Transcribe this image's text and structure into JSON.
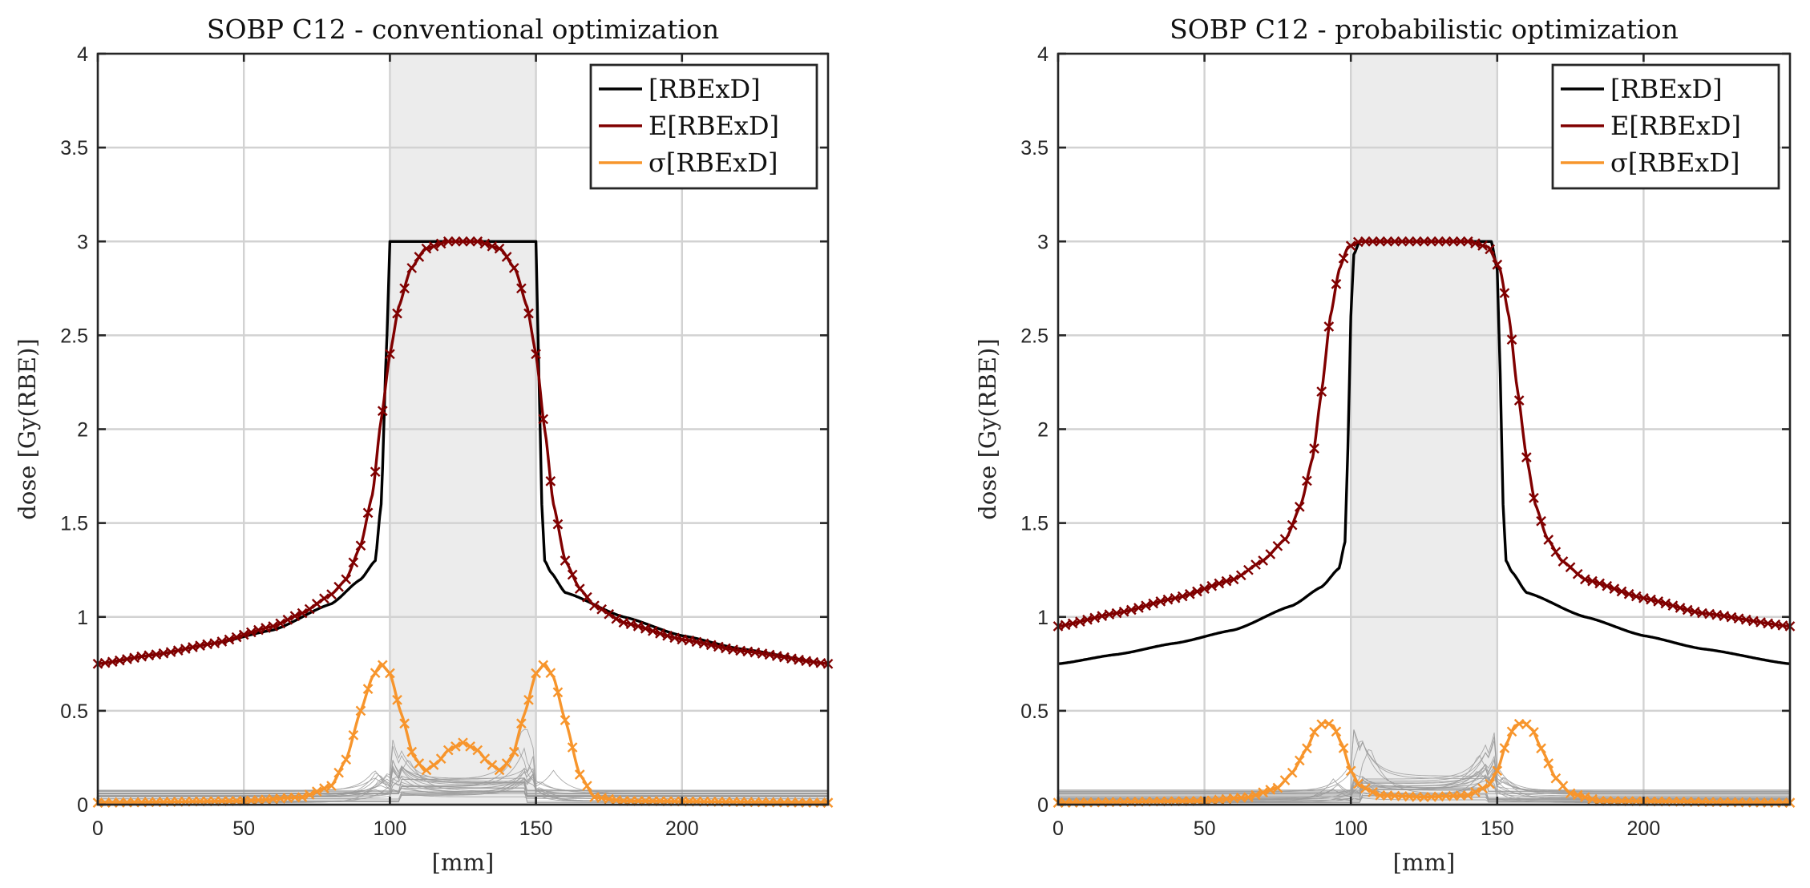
{
  "chart_data": [
    {
      "type": "line",
      "title": "SOBP C12 - conventional optimization",
      "xlabel": "[mm]",
      "ylabel": "dose [Gy(RBE)]",
      "xlim": [
        0,
        250
      ],
      "ylim": [
        0,
        4
      ],
      "xticks": [
        "0",
        "50",
        "100",
        "150",
        "200"
      ],
      "yticks": [
        "0",
        "0.5",
        "1",
        "1.5",
        "2",
        "2.5",
        "3",
        "3.5",
        "4"
      ],
      "grid": true,
      "legend_position": "top-right",
      "target_region": [
        100,
        150
      ],
      "series": [
        {
          "name": "[RBExD]",
          "color": "#000000",
          "x": [
            0,
            20,
            40,
            60,
            80,
            90,
            95,
            97,
            99,
            100,
            101,
            103,
            110,
            125,
            140,
            148,
            150,
            151,
            152,
            153,
            155,
            160,
            180,
            200,
            220,
            250
          ],
          "y": [
            0.75,
            0.8,
            0.86,
            0.93,
            1.07,
            1.2,
            1.3,
            1.6,
            2.5,
            3.0,
            3.0,
            3.0,
            3.0,
            3.0,
            3.0,
            3.0,
            3.0,
            2.3,
            1.6,
            1.3,
            1.24,
            1.13,
            1.0,
            0.9,
            0.83,
            0.75
          ]
        },
        {
          "name": "E[RBExD]",
          "color": "#800000",
          "marker": "x",
          "x": [
            0,
            20,
            40,
            60,
            70,
            80,
            85,
            90,
            94,
            97,
            100,
            103,
            107,
            112,
            120,
            125,
            130,
            138,
            143,
            147,
            150,
            153,
            156,
            160,
            165,
            170,
            180,
            200,
            220,
            250
          ],
          "y": [
            0.75,
            0.8,
            0.86,
            0.95,
            1.02,
            1.12,
            1.2,
            1.38,
            1.65,
            2.05,
            2.4,
            2.65,
            2.85,
            2.96,
            3.0,
            3.0,
            3.0,
            2.96,
            2.85,
            2.65,
            2.4,
            2.0,
            1.6,
            1.3,
            1.15,
            1.06,
            0.97,
            0.88,
            0.82,
            0.75
          ]
        },
        {
          "name": "σ[RBExD]",
          "color": "#f7952c",
          "marker": "x",
          "x": [
            0,
            50,
            70,
            80,
            85,
            90,
            94,
            97,
            100,
            104,
            108,
            112,
            116,
            120,
            125,
            130,
            134,
            138,
            142,
            146,
            150,
            153,
            156,
            160,
            165,
            170,
            180,
            250
          ],
          "y": [
            0.01,
            0.02,
            0.04,
            0.1,
            0.24,
            0.5,
            0.68,
            0.75,
            0.7,
            0.48,
            0.26,
            0.18,
            0.22,
            0.29,
            0.33,
            0.29,
            0.22,
            0.18,
            0.26,
            0.48,
            0.7,
            0.75,
            0.68,
            0.45,
            0.16,
            0.04,
            0.02,
            0.01
          ]
        }
      ]
    },
    {
      "type": "line",
      "title": "SOBP C12 - probabilistic optimization",
      "xlabel": "[mm]",
      "ylabel": "dose [Gy(RBE)]",
      "xlim": [
        0,
        250
      ],
      "ylim": [
        0,
        4
      ],
      "xticks": [
        "0",
        "50",
        "100",
        "150",
        "200"
      ],
      "yticks": [
        "0",
        "0.5",
        "1",
        "1.5",
        "2",
        "2.5",
        "3",
        "3.5",
        "4"
      ],
      "grid": true,
      "legend_position": "top-right",
      "target_region": [
        100,
        150
      ],
      "series": [
        {
          "name": "[RBExD]",
          "color": "#000000",
          "x": [
            0,
            20,
            40,
            60,
            80,
            90,
            96,
            98,
            99,
            100,
            101,
            103,
            110,
            125,
            140,
            148,
            150,
            151,
            152,
            153,
            155,
            160,
            180,
            200,
            220,
            250
          ],
          "y": [
            0.75,
            0.8,
            0.86,
            0.93,
            1.06,
            1.16,
            1.26,
            1.4,
            1.9,
            2.6,
            2.93,
            3.0,
            3.0,
            3.0,
            3.0,
            3.0,
            2.85,
            2.3,
            1.6,
            1.3,
            1.24,
            1.13,
            1.0,
            0.9,
            0.83,
            0.75
          ]
        },
        {
          "name": "E[RBExD]",
          "color": "#800000",
          "marker": "x",
          "x": [
            0,
            20,
            40,
            60,
            70,
            78,
            83,
            87,
            90,
            93,
            96,
            99,
            103,
            110,
            125,
            140,
            147,
            151,
            154,
            157,
            160,
            163,
            167,
            172,
            180,
            200,
            220,
            250
          ],
          "y": [
            0.95,
            1.02,
            1.1,
            1.2,
            1.3,
            1.42,
            1.6,
            1.85,
            2.2,
            2.6,
            2.85,
            2.97,
            3.0,
            3.0,
            3.0,
            3.0,
            2.97,
            2.85,
            2.6,
            2.2,
            1.85,
            1.6,
            1.42,
            1.3,
            1.2,
            1.1,
            1.02,
            0.95
          ]
        },
        {
          "name": "σ[RBExD]",
          "color": "#f7952c",
          "marker": "x",
          "x": [
            0,
            50,
            65,
            75,
            80,
            85,
            88,
            91,
            94,
            97,
            100,
            103,
            110,
            125,
            140,
            147,
            150,
            153,
            156,
            159,
            162,
            165,
            170,
            175,
            185,
            250
          ],
          "y": [
            0.01,
            0.02,
            0.04,
            0.09,
            0.17,
            0.3,
            0.4,
            0.44,
            0.42,
            0.32,
            0.18,
            0.1,
            0.05,
            0.04,
            0.05,
            0.1,
            0.18,
            0.32,
            0.42,
            0.44,
            0.4,
            0.3,
            0.14,
            0.06,
            0.02,
            0.01
          ]
        }
      ]
    }
  ]
}
